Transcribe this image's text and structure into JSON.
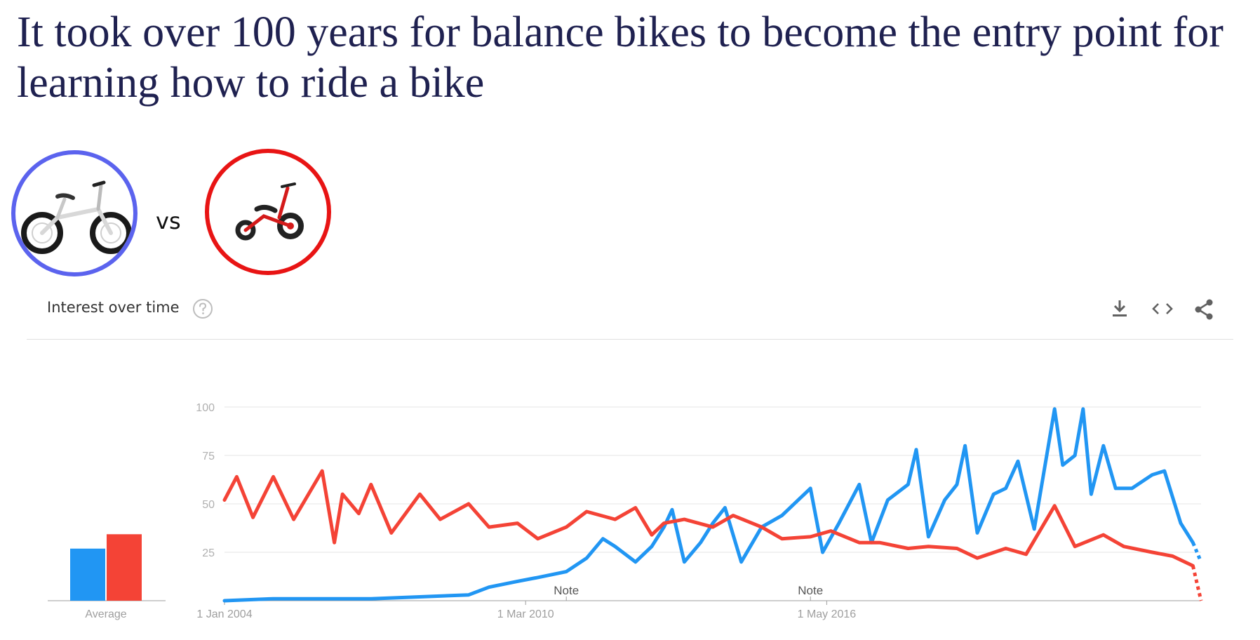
{
  "headline": "It took over 100 years for balance bikes to become the entry point for learning how to ride a bike",
  "vs_label": "vs",
  "card": {
    "title": "Interest over time",
    "help_icon": "help-circle-icon",
    "toolbar_icons": [
      "download-icon",
      "embed-code-icon",
      "share-icon"
    ]
  },
  "colors": {
    "headline": "#1f2150",
    "balance_bike": "#2196f3",
    "tricycle": "#f44336",
    "balance_circle": "#5b63ee",
    "tricycle_circle": "#e81414"
  },
  "chart_data": {
    "type": "line",
    "ylim": [
      0,
      100
    ],
    "yticks": [
      25,
      50,
      75,
      100
    ],
    "xtick_labels": [
      "1 Jan 2004",
      "1 Mar 2010",
      "1 May 2016"
    ],
    "x_range": [
      "2004-01",
      "2024-01"
    ],
    "notes": [
      {
        "label": "Note",
        "x": "2011-01"
      },
      {
        "label": "Note",
        "x": "2016-01"
      }
    ],
    "average_label": "Average",
    "averages": [
      29,
      37
    ],
    "grid": true,
    "legend": "none",
    "series": [
      {
        "color": "#2196f3",
        "points": [
          [
            "2004-01",
            0
          ],
          [
            "2005-01",
            1
          ],
          [
            "2006-01",
            1
          ],
          [
            "2007-01",
            1
          ],
          [
            "2008-01",
            2
          ],
          [
            "2009-01",
            3
          ],
          [
            "2009-06",
            7
          ],
          [
            "2010-01",
            10
          ],
          [
            "2010-06",
            12
          ],
          [
            "2011-01",
            15
          ],
          [
            "2011-06",
            22
          ],
          [
            "2011-10",
            32
          ],
          [
            "2012-01",
            28
          ],
          [
            "2012-06",
            20
          ],
          [
            "2012-10",
            28
          ],
          [
            "2013-01",
            38
          ],
          [
            "2013-03",
            47
          ],
          [
            "2013-06",
            20
          ],
          [
            "2013-10",
            30
          ],
          [
            "2014-01",
            40
          ],
          [
            "2014-04",
            48
          ],
          [
            "2014-08",
            20
          ],
          [
            "2015-01",
            38
          ],
          [
            "2015-06",
            44
          ],
          [
            "2016-01",
            58
          ],
          [
            "2016-04",
            25
          ],
          [
            "2016-08",
            40
          ],
          [
            "2017-01",
            60
          ],
          [
            "2017-04",
            30
          ],
          [
            "2017-08",
            52
          ],
          [
            "2018-01",
            60
          ],
          [
            "2018-03",
            78
          ],
          [
            "2018-06",
            33
          ],
          [
            "2018-10",
            52
          ],
          [
            "2019-01",
            60
          ],
          [
            "2019-03",
            80
          ],
          [
            "2019-06",
            35
          ],
          [
            "2019-10",
            55
          ],
          [
            "2020-01",
            58
          ],
          [
            "2020-04",
            72
          ],
          [
            "2020-08",
            37
          ],
          [
            "2021-01",
            99
          ],
          [
            "2021-03",
            70
          ],
          [
            "2021-06",
            75
          ],
          [
            "2021-08",
            99
          ],
          [
            "2021-10",
            55
          ],
          [
            "2022-01",
            80
          ],
          [
            "2022-04",
            58
          ],
          [
            "2022-08",
            58
          ],
          [
            "2023-01",
            65
          ],
          [
            "2023-04",
            67
          ],
          [
            "2023-08",
            40
          ],
          [
            "2023-11",
            30
          ]
        ],
        "partial_points": [
          [
            "2023-11",
            30
          ],
          [
            "2024-01",
            20
          ]
        ]
      },
      {
        "color": "#f44336",
        "points": [
          [
            "2004-01",
            52
          ],
          [
            "2004-04",
            64
          ],
          [
            "2004-08",
            43
          ],
          [
            "2005-01",
            64
          ],
          [
            "2005-06",
            42
          ],
          [
            "2006-01",
            67
          ],
          [
            "2006-04",
            30
          ],
          [
            "2006-06",
            55
          ],
          [
            "2006-10",
            45
          ],
          [
            "2007-01",
            60
          ],
          [
            "2007-06",
            35
          ],
          [
            "2008-01",
            55
          ],
          [
            "2008-06",
            42
          ],
          [
            "2009-01",
            50
          ],
          [
            "2009-06",
            38
          ],
          [
            "2010-01",
            40
          ],
          [
            "2010-06",
            32
          ],
          [
            "2011-01",
            38
          ],
          [
            "2011-06",
            46
          ],
          [
            "2012-01",
            42
          ],
          [
            "2012-06",
            48
          ],
          [
            "2012-10",
            34
          ],
          [
            "2013-01",
            40
          ],
          [
            "2013-06",
            42
          ],
          [
            "2014-01",
            38
          ],
          [
            "2014-06",
            44
          ],
          [
            "2015-01",
            38
          ],
          [
            "2015-06",
            32
          ],
          [
            "2016-01",
            33
          ],
          [
            "2016-06",
            36
          ],
          [
            "2017-01",
            30
          ],
          [
            "2017-06",
            30
          ],
          [
            "2018-01",
            27
          ],
          [
            "2018-06",
            28
          ],
          [
            "2019-01",
            27
          ],
          [
            "2019-06",
            22
          ],
          [
            "2020-01",
            27
          ],
          [
            "2020-06",
            24
          ],
          [
            "2021-01",
            49
          ],
          [
            "2021-06",
            28
          ],
          [
            "2022-01",
            34
          ],
          [
            "2022-06",
            28
          ],
          [
            "2023-01",
            25
          ],
          [
            "2023-06",
            23
          ],
          [
            "2023-11",
            18
          ]
        ],
        "partial_points": [
          [
            "2023-11",
            18
          ],
          [
            "2024-01",
            0
          ]
        ]
      }
    ]
  }
}
